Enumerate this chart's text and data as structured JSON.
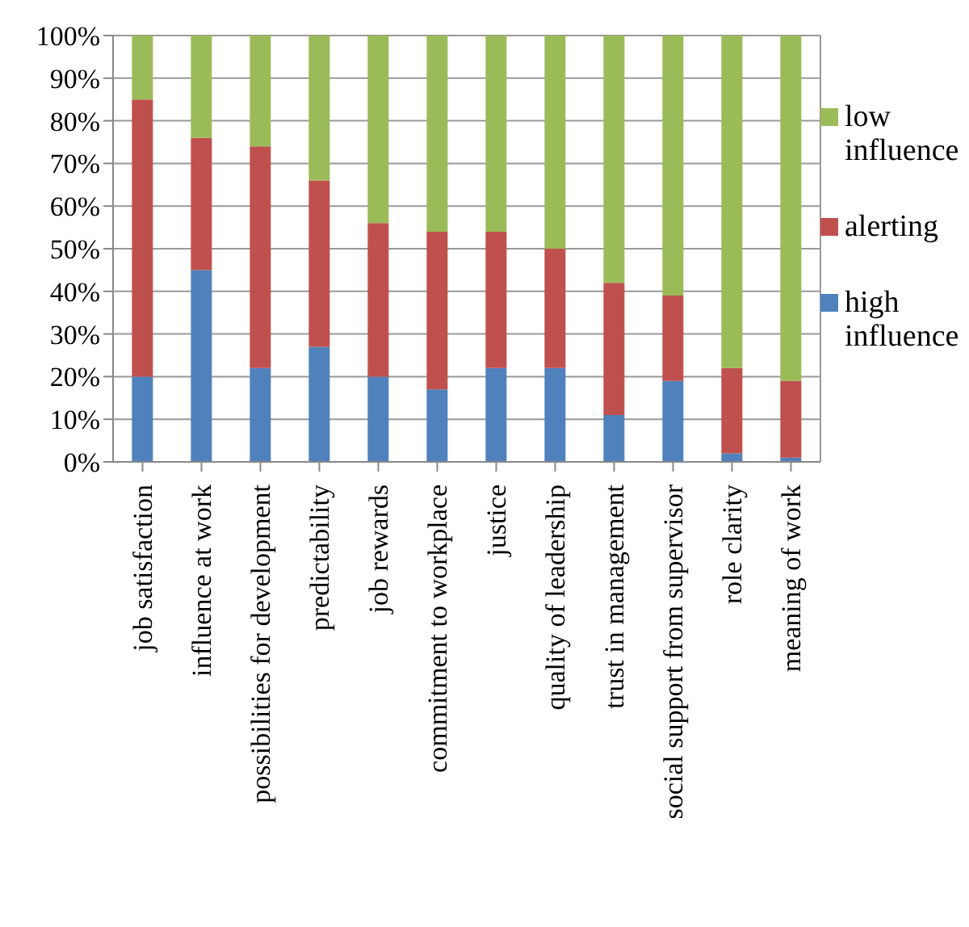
{
  "chart_data": {
    "type": "bar",
    "stacked": true,
    "categories": [
      "job satisfaction",
      "influence at work",
      "possibilities for development",
      "predictability",
      "job rewards",
      "commitment to workplace",
      "justice",
      "quality of leadership",
      "trust in management",
      "social support from supervisor",
      "role clarity",
      "meaning of work"
    ],
    "series": [
      {
        "name": "high influence",
        "color": "#4f81bd",
        "values": [
          20,
          45,
          22,
          27,
          20,
          17,
          22,
          22,
          11,
          19,
          2,
          1
        ]
      },
      {
        "name": "alerting",
        "color": "#c0504d",
        "values": [
          65,
          31,
          52,
          39,
          36,
          37,
          32,
          28,
          31,
          20,
          20,
          18
        ]
      },
      {
        "name": "low influence",
        "color": "#9bbb59",
        "values": [
          15,
          24,
          26,
          34,
          44,
          46,
          46,
          50,
          58,
          61,
          78,
          81
        ]
      }
    ],
    "ylim": [
      0,
      100
    ],
    "yticks": [
      {
        "value": 0,
        "label": "0%"
      },
      {
        "value": 10,
        "label": "10%"
      },
      {
        "value": 20,
        "label": "20%"
      },
      {
        "value": 30,
        "label": "30%"
      },
      {
        "value": 40,
        "label": "40%"
      },
      {
        "value": 50,
        "label": "50%"
      },
      {
        "value": 60,
        "label": "60%"
      },
      {
        "value": 70,
        "label": "70%"
      },
      {
        "value": 80,
        "label": "80%"
      },
      {
        "value": 90,
        "label": "90%"
      },
      {
        "value": 100,
        "label": "100%"
      }
    ],
    "grid": true,
    "legend": "right"
  }
}
